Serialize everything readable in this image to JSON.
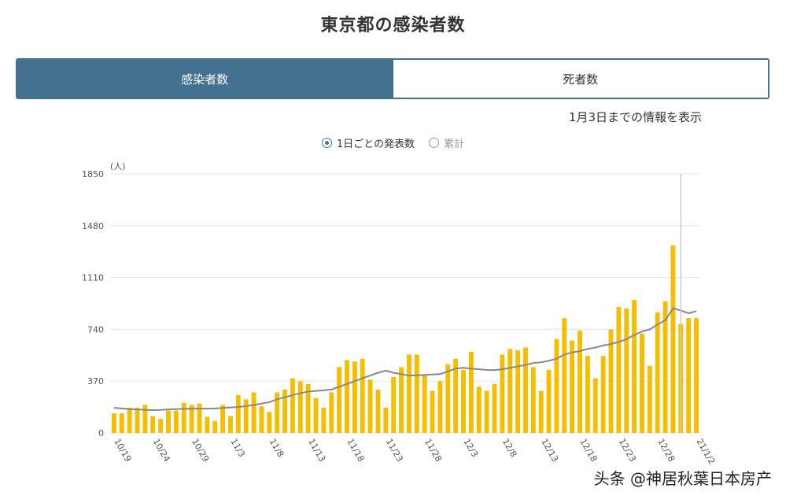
{
  "page_title": "東京都の感染者数",
  "tabs": [
    {
      "label": "感染者数",
      "active": true
    },
    {
      "label": "死者数",
      "active": false
    }
  ],
  "info_text": "1月3日までの情報を表示",
  "toggle": {
    "daily_label": "1日ごとの発表数",
    "cumulative_label": "累計",
    "selected": "daily"
  },
  "watermark": "头条 @神居秋葉日本房产",
  "colors": {
    "accent": "#44718f",
    "bar": "#f5be00",
    "line": "#888888",
    "grid": "#e6e6e6"
  },
  "chart_data": {
    "type": "bar",
    "unit_label": "(人)",
    "y_ticks": [
      0,
      370,
      740,
      1110,
      1480,
      1850
    ],
    "ylim": [
      0,
      1850
    ],
    "x_tick_labels": [
      "10/19",
      "10/24",
      "10/29",
      "11/3",
      "11/8",
      "11/13",
      "11/18",
      "11/23",
      "11/28",
      "12/3",
      "12/8",
      "12/13",
      "12/18",
      "12/23",
      "12/28",
      "21/1/2"
    ],
    "x_tick_index": [
      0,
      5,
      10,
      15,
      20,
      25,
      30,
      35,
      40,
      45,
      50,
      55,
      60,
      65,
      70,
      75
    ],
    "grid": true,
    "series": [
      {
        "kind": "bar",
        "values": [
          140,
          140,
          180,
          180,
          200,
          120,
          100,
          160,
          160,
          215,
          200,
          210,
          115,
          85,
          200,
          120,
          270,
          240,
          290,
          190,
          150,
          290,
          310,
          390,
          370,
          350,
          250,
          180,
          290,
          470,
          520,
          510,
          530,
          380,
          310,
          180,
          400,
          470,
          560,
          560,
          420,
          300,
          370,
          490,
          530,
          450,
          580,
          330,
          300,
          350,
          560,
          600,
          590,
          610,
          470,
          300,
          450,
          670,
          820,
          660,
          730,
          550,
          390,
          550,
          740,
          900,
          890,
          950,
          710,
          480,
          860,
          940,
          1340,
          780,
          820,
          820
        ]
      },
      {
        "kind": "line",
        "values": [
          180,
          175,
          170,
          168,
          165,
          163,
          165,
          168,
          170,
          172,
          173,
          174,
          174,
          175,
          178,
          182,
          185,
          192,
          200,
          210,
          220,
          240,
          255,
          270,
          285,
          295,
          300,
          305,
          310,
          330,
          350,
          370,
          390,
          410,
          430,
          445,
          430,
          420,
          410,
          412,
          415,
          418,
          420,
          440,
          460,
          465,
          460,
          455,
          450,
          448,
          455,
          465,
          475,
          485,
          500,
          505,
          515,
          530,
          560,
          575,
          585,
          600,
          610,
          625,
          635,
          650,
          670,
          700,
          725,
          740,
          775,
          805,
          890,
          875,
          855,
          870
        ]
      }
    ]
  }
}
